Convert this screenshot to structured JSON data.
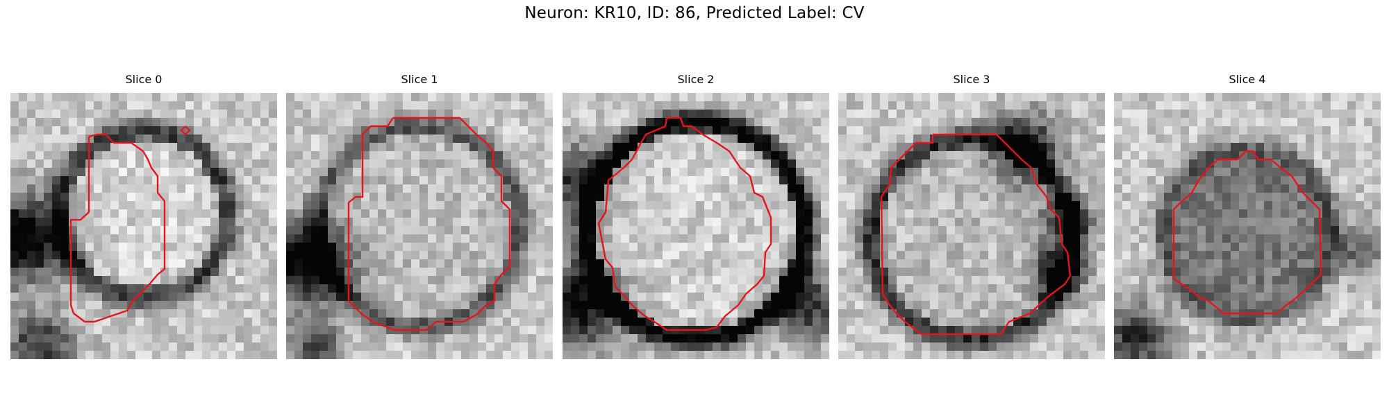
{
  "figure": {
    "title": "Neuron: KR10, ID: 86, Predicted Label: CV",
    "contour_color": "#e8141c"
  },
  "panels": [
    {
      "title": "Slice 0"
    },
    {
      "title": "Slice 1"
    },
    {
      "title": "Slice 2"
    },
    {
      "title": "Slice 3"
    },
    {
      "title": "Slice 4"
    }
  ]
}
